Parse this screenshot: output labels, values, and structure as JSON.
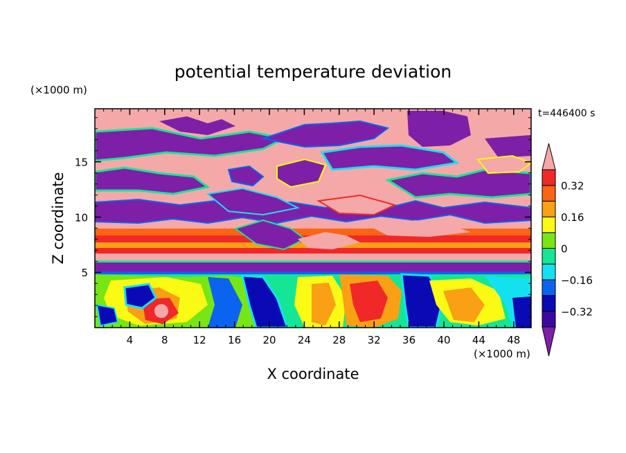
{
  "chart_data": {
    "type": "heatmap",
    "title": "potential temperature deviation",
    "xlabel": "X coordinate",
    "ylabel": "Z coordinate",
    "x_unit": "(×1000 m)",
    "y_unit": "(×1000 m)",
    "time_label": "t=446400 s",
    "xlim": [
      0,
      50
    ],
    "ylim": [
      0,
      19.8
    ],
    "x_ticks": [
      4,
      8,
      12,
      16,
      20,
      24,
      28,
      32,
      36,
      40,
      44,
      48
    ],
    "y_ticks": [
      5,
      10,
      15
    ],
    "colorbar": {
      "levels": [
        -0.4,
        -0.32,
        -0.24,
        -0.16,
        -0.08,
        0,
        0.08,
        0.16,
        0.24,
        0.32,
        0.4
      ],
      "tick_labels": [
        {
          "value": 0.32,
          "label": "0.32"
        },
        {
          "value": 0.16,
          "label": "0.16"
        },
        {
          "value": 0,
          "label": "0"
        },
        {
          "value": -0.16,
          "label": "−0.16"
        },
        {
          "value": -0.32,
          "label": "−0.32"
        }
      ],
      "colors": [
        "#7e1fa8",
        "#3c08a0",
        "#0a0ab4",
        "#0a64f0",
        "#14e1f0",
        "#14e696",
        "#78e614",
        "#fafa14",
        "#faa014",
        "#fa6414",
        "#f02828",
        "#f5a8a8"
      ]
    },
    "bands": [
      {
        "z_range": [
          17,
          19.8
        ],
        "value": 0.45,
        "note": "upper pink with purple patches"
      },
      {
        "z_range": [
          10.5,
          17
        ],
        "value": -0.45,
        "note": "mixed pink/purple turbulent layer"
      },
      {
        "z_range": [
          6.1,
          8.5
        ],
        "value": 0.35,
        "note": "warm red/orange stratified layer"
      },
      {
        "z_range": [
          5.3,
          6.1
        ],
        "value": -0.45,
        "note": "thin purple layer"
      },
      {
        "z_range": [
          0,
          5.3
        ],
        "value": 0.05,
        "note": "turbulent lower layer"
      }
    ]
  }
}
